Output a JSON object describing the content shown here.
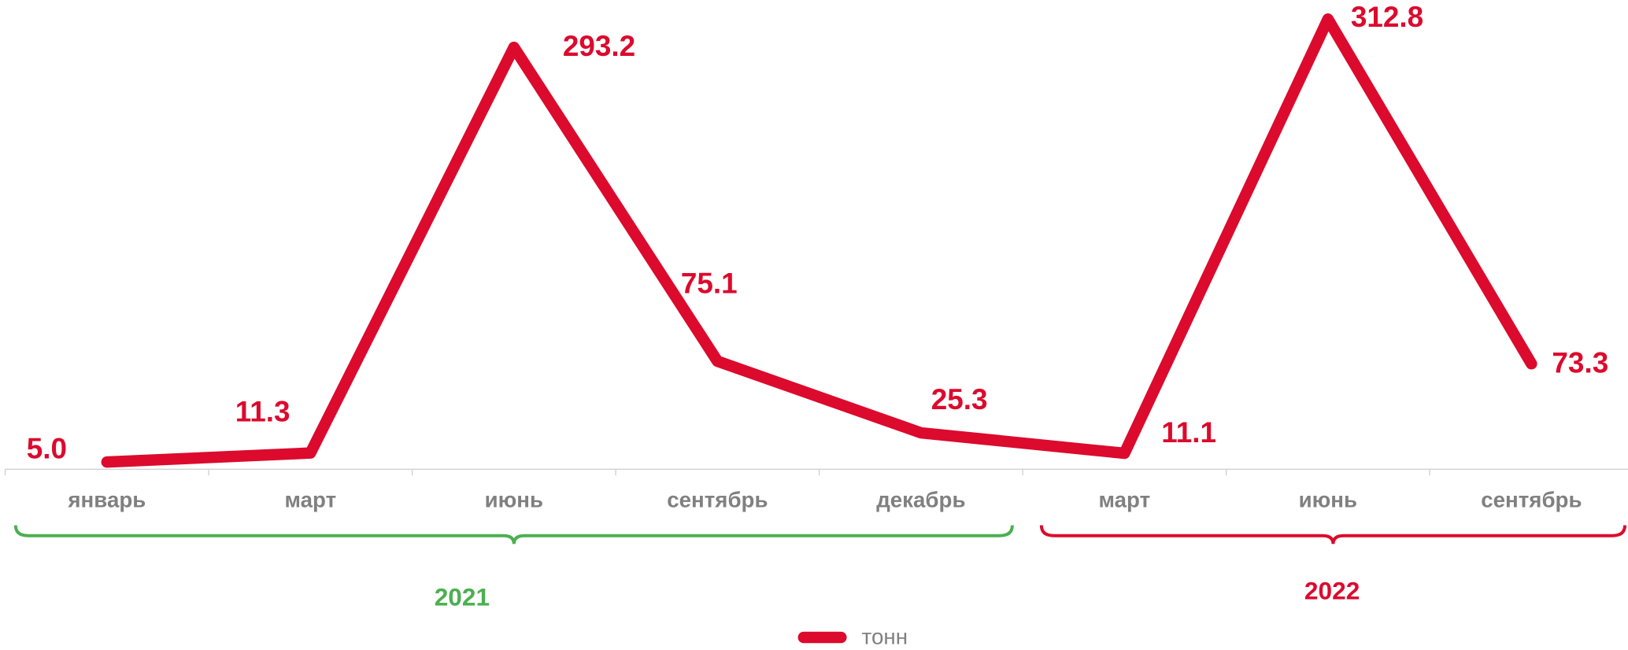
{
  "chart_data": {
    "type": "line",
    "categories": [
      "январь",
      "март",
      "июнь",
      "сентябрь",
      "декабрь",
      "март",
      "июнь",
      "сентябрь"
    ],
    "series": [
      {
        "name": "тонн",
        "color": "#dc0a2d",
        "values": [
          5.0,
          11.3,
          293.2,
          75.1,
          25.3,
          11.1,
          312.8,
          73.3
        ],
        "value_labels": [
          "5.0",
          "11.3",
          "293.2",
          "75.1",
          "25.3",
          "11.1",
          "312.8",
          "73.3"
        ]
      }
    ],
    "groups": [
      {
        "label": "2021",
        "color": "#4caf50"
      },
      {
        "label": "2022",
        "color": "#dc0a2d"
      }
    ],
    "ylim": [
      0,
      326
    ]
  }
}
